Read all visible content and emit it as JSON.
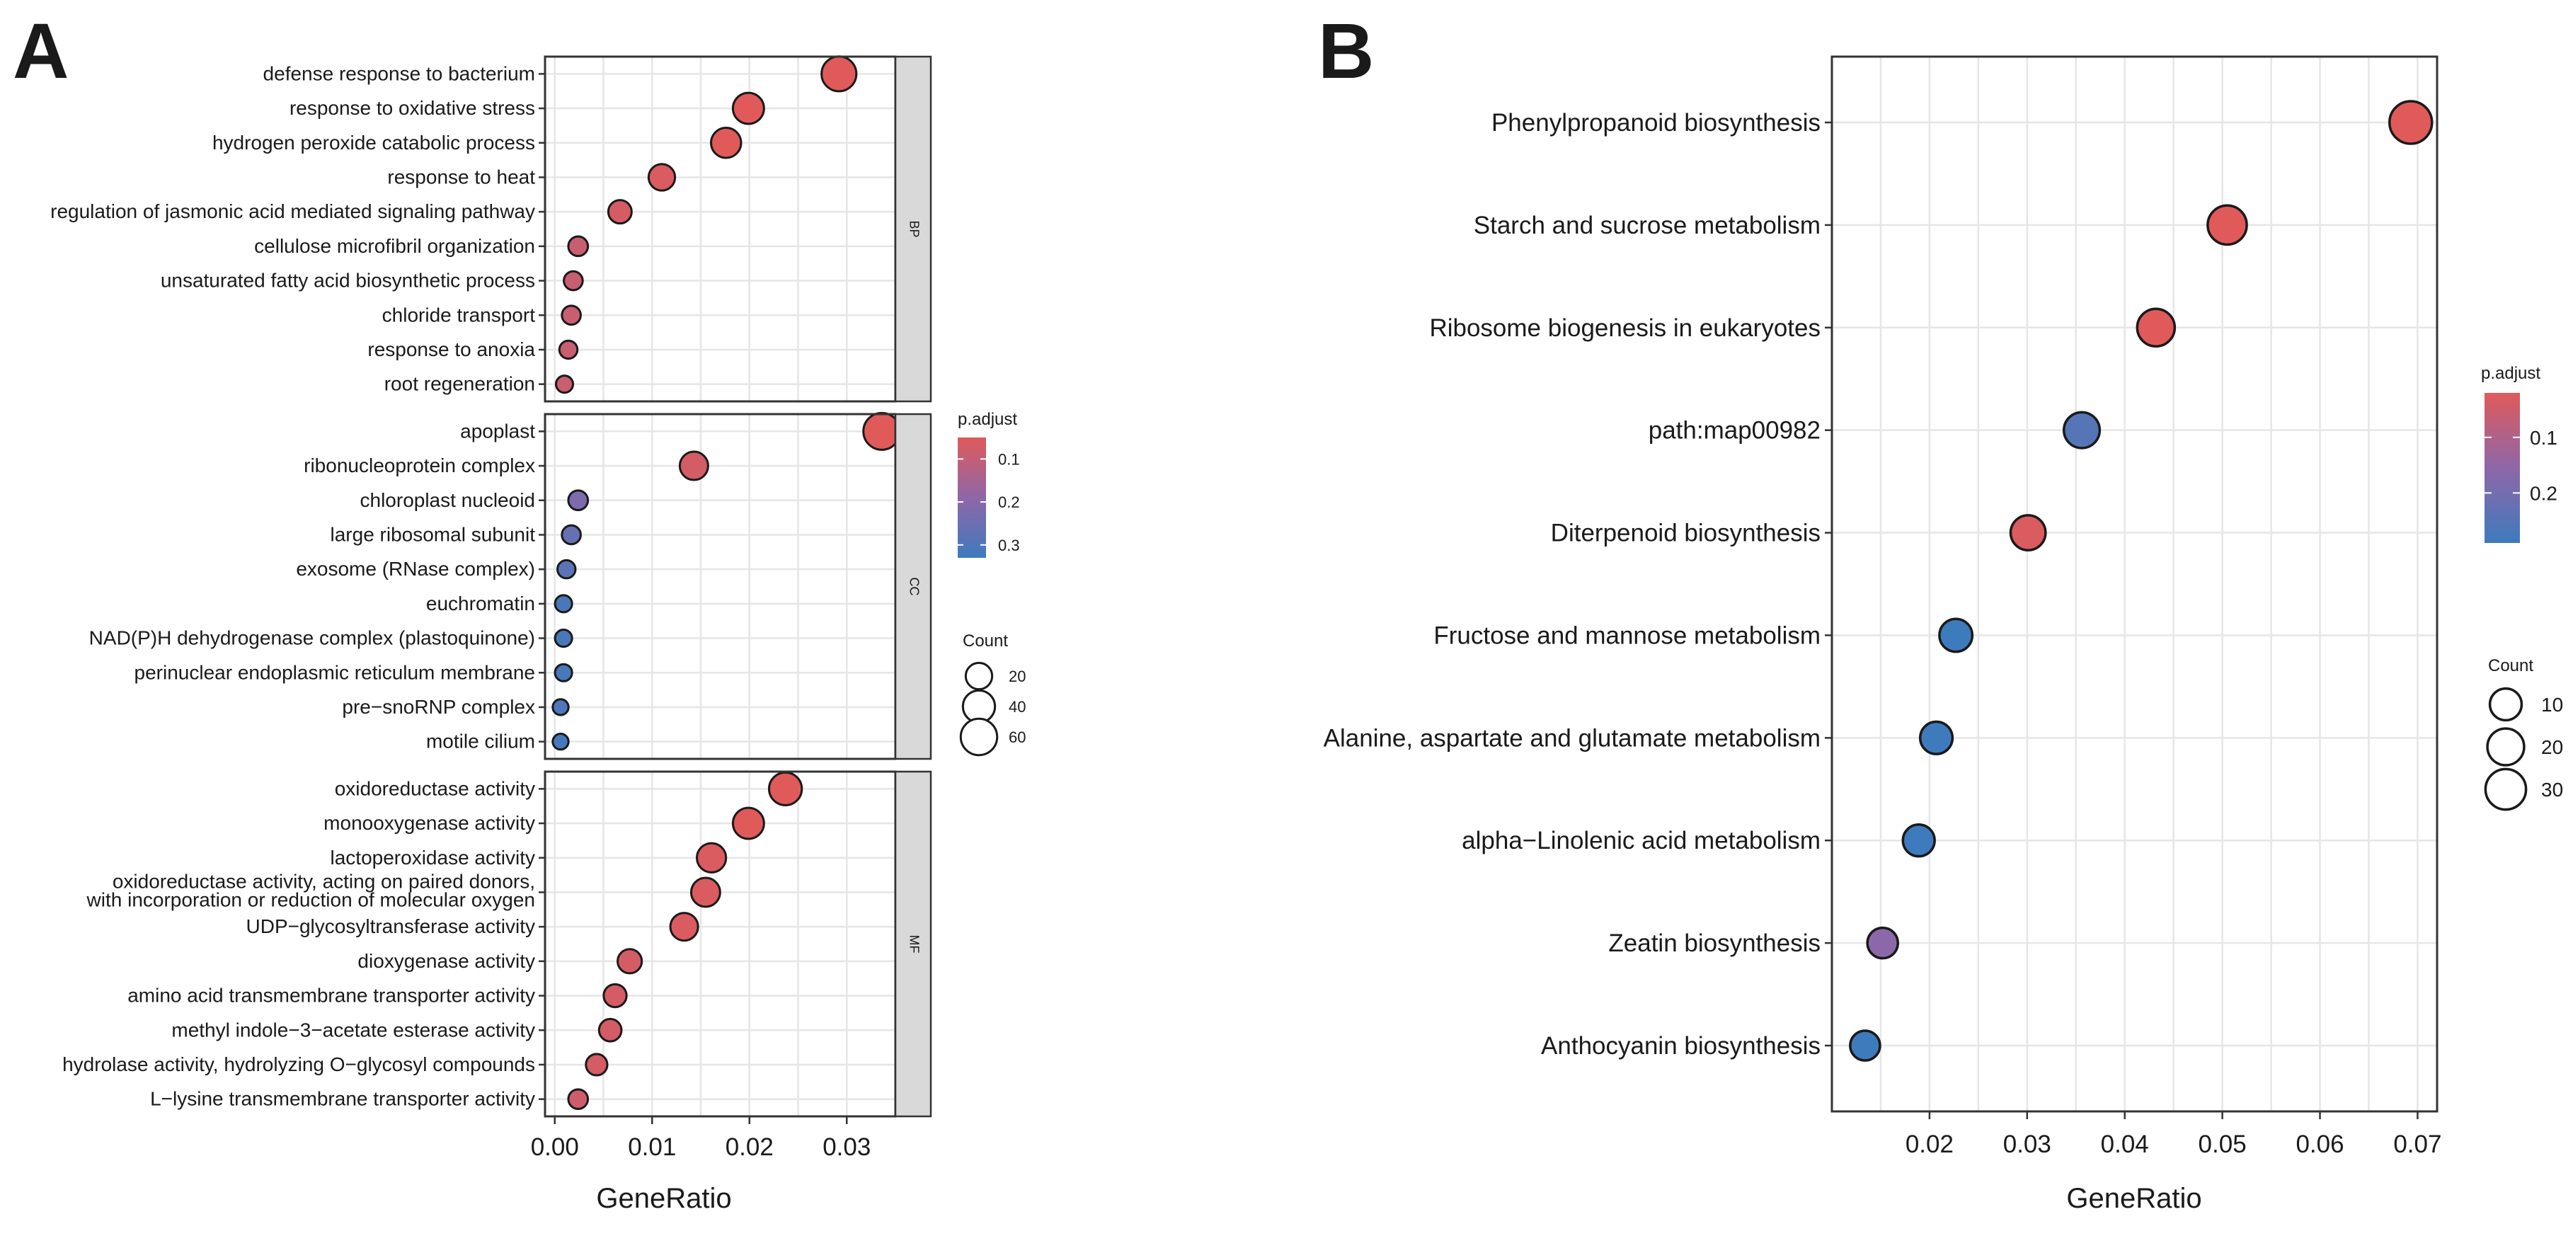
{
  "panels": {
    "a_label": "A",
    "b_label": "B"
  },
  "colors": {
    "high_significance": "#e05a5a",
    "mid_significance": "#8e67a8",
    "low_significance": "#3e7bbd",
    "grid": "#e6e6e6",
    "strip": "#d9d9d9"
  },
  "legend_a": {
    "color_title": "p.adjust",
    "color_ticks": [
      0.1,
      0.2,
      0.3
    ],
    "size_title": "Count",
    "size_values": [
      20,
      40,
      60
    ]
  },
  "legend_b": {
    "color_title": "p.adjust",
    "color_ticks": [
      0.1,
      0.2
    ],
    "size_title": "Count",
    "size_values": [
      10,
      20,
      30
    ]
  },
  "chart_data": [
    {
      "type": "scatter",
      "panel": "A",
      "xlabel": "GeneRatio",
      "xlim": [
        -0.001,
        0.035
      ],
      "xticks": [
        "0.00",
        "0.01",
        "0.02",
        "0.03"
      ],
      "xtick_values": [
        0,
        0.01,
        0.02,
        0.03
      ],
      "facets": [
        {
          "name": "BP",
          "points": [
            {
              "term": "defense response to bacterium",
              "gene_ratio": 0.0292,
              "count": 52,
              "p_adjust": 0.05
            },
            {
              "term": "response to oxidative stress",
              "gene_ratio": 0.0199,
              "count": 36,
              "p_adjust": 0.05
            },
            {
              "term": "hydrogen peroxide catabolic process",
              "gene_ratio": 0.0176,
              "count": 32,
              "p_adjust": 0.05
            },
            {
              "term": "response to heat",
              "gene_ratio": 0.011,
              "count": 20,
              "p_adjust": 0.06
            },
            {
              "term": "regulation of jasmonic acid mediated signaling pathway",
              "gene_ratio": 0.0067,
              "count": 12,
              "p_adjust": 0.07
            },
            {
              "term": "cellulose microfibril organization",
              "gene_ratio": 0.0024,
              "count": 5,
              "p_adjust": 0.09
            },
            {
              "term": "unsaturated fatty acid biosynthetic process",
              "gene_ratio": 0.0019,
              "count": 4,
              "p_adjust": 0.09
            },
            {
              "term": "chloride transport",
              "gene_ratio": 0.0017,
              "count": 4,
              "p_adjust": 0.09
            },
            {
              "term": "response to anoxia",
              "gene_ratio": 0.0014,
              "count": 3,
              "p_adjust": 0.09
            },
            {
              "term": "root regeneration",
              "gene_ratio": 0.001,
              "count": 2,
              "p_adjust": 0.09
            }
          ]
        },
        {
          "name": "CC",
          "points": [
            {
              "term": "apoplast",
              "gene_ratio": 0.0336,
              "count": 62,
              "p_adjust": 0.05
            },
            {
              "term": "ribonucleoprotein complex",
              "gene_ratio": 0.0143,
              "count": 26,
              "p_adjust": 0.07
            },
            {
              "term": "chloroplast nucleoid",
              "gene_ratio": 0.0024,
              "count": 5,
              "p_adjust": 0.22
            },
            {
              "term": "large ribosomal subunit",
              "gene_ratio": 0.0017,
              "count": 4,
              "p_adjust": 0.26
            },
            {
              "term": "exosome (RNase complex)",
              "gene_ratio": 0.0012,
              "count": 3,
              "p_adjust": 0.28
            },
            {
              "term": "euchromatin",
              "gene_ratio": 0.0009,
              "count": 2,
              "p_adjust": 0.31
            },
            {
              "term": "NAD(P)H dehydrogenase complex (plastoquinone)",
              "gene_ratio": 0.0009,
              "count": 2,
              "p_adjust": 0.31
            },
            {
              "term": "perinuclear endoplasmic reticulum membrane",
              "gene_ratio": 0.0009,
              "count": 2,
              "p_adjust": 0.31
            },
            {
              "term": "pre−snoRNP complex",
              "gene_ratio": 0.0006,
              "count": 1,
              "p_adjust": 0.3
            },
            {
              "term": "motile cilium",
              "gene_ratio": 0.0006,
              "count": 1,
              "p_adjust": 0.32
            }
          ]
        },
        {
          "name": "MF",
          "points": [
            {
              "term": "oxidoreductase activity",
              "gene_ratio": 0.0237,
              "count": 43,
              "p_adjust": 0.05
            },
            {
              "term": "monooxygenase activity",
              "gene_ratio": 0.0199,
              "count": 36,
              "p_adjust": 0.05
            },
            {
              "term": "lactoperoxidase activity",
              "gene_ratio": 0.0161,
              "count": 29,
              "p_adjust": 0.06
            },
            {
              "term": "oxidoreductase activity, acting on paired donors, with incorporation or reduction of molecular oxygen",
              "gene_ratio": 0.0155,
              "count": 28,
              "p_adjust": 0.06
            },
            {
              "term": "UDP−glycosyltransferase activity",
              "gene_ratio": 0.0133,
              "count": 24,
              "p_adjust": 0.06
            },
            {
              "term": "dioxygenase activity",
              "gene_ratio": 0.0077,
              "count": 14,
              "p_adjust": 0.07
            },
            {
              "term": "amino acid transmembrane transporter activity",
              "gene_ratio": 0.0062,
              "count": 11,
              "p_adjust": 0.07
            },
            {
              "term": "methyl indole−3−acetate esterase activity",
              "gene_ratio": 0.0057,
              "count": 10,
              "p_adjust": 0.07
            },
            {
              "term": "hydrolase activity, hydrolyzing O−glycosyl compounds",
              "gene_ratio": 0.0043,
              "count": 8,
              "p_adjust": 0.07
            },
            {
              "term": "L−lysine transmembrane transporter activity",
              "gene_ratio": 0.0024,
              "count": 5,
              "p_adjust": 0.08
            }
          ]
        }
      ]
    },
    {
      "type": "scatter",
      "panel": "B",
      "xlabel": "GeneRatio",
      "xlim": [
        0.01,
        0.072
      ],
      "xticks": [
        "0.02",
        "0.03",
        "0.04",
        "0.05",
        "0.06",
        "0.07"
      ],
      "xtick_values": [
        0.02,
        0.03,
        0.04,
        0.05,
        0.06,
        0.07
      ],
      "points": [
        {
          "term": "Phenylpropanoid biosynthesis",
          "gene_ratio": 0.0693,
          "count": 36,
          "p_adjust": 0.02
        },
        {
          "term": "Starch and sucrose metabolism",
          "gene_ratio": 0.0505,
          "count": 26,
          "p_adjust": 0.02
        },
        {
          "term": "Ribosome biogenesis in eukaryotes",
          "gene_ratio": 0.0432,
          "count": 22,
          "p_adjust": 0.02
        },
        {
          "term": "path:map00982",
          "gene_ratio": 0.0356,
          "count": 18,
          "p_adjust": 0.25
        },
        {
          "term": "Diterpenoid biosynthesis",
          "gene_ratio": 0.0301,
          "count": 16,
          "p_adjust": 0.03
        },
        {
          "term": "Fructose and mannose metabolism",
          "gene_ratio": 0.0227,
          "count": 12,
          "p_adjust": 0.29
        },
        {
          "term": "Alanine, aspartate and glutamate metabolism",
          "gene_ratio": 0.0207,
          "count": 11,
          "p_adjust": 0.29
        },
        {
          "term": "alpha−Linolenic acid metabolism",
          "gene_ratio": 0.0189,
          "count": 10,
          "p_adjust": 0.29
        },
        {
          "term": "Zeatin biosynthesis",
          "gene_ratio": 0.0152,
          "count": 8,
          "p_adjust": 0.16
        },
        {
          "term": "Anthocyanin biosynthesis",
          "gene_ratio": 0.0134,
          "count": 7,
          "p_adjust": 0.29
        }
      ]
    }
  ]
}
